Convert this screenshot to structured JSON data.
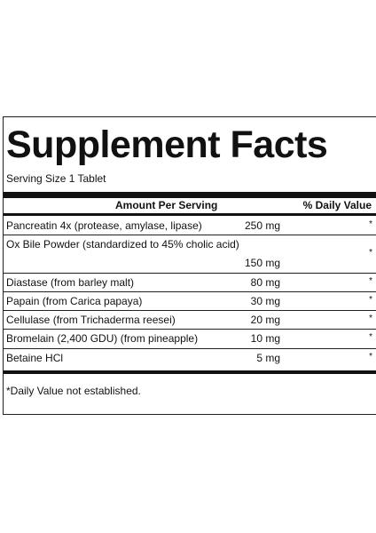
{
  "label": {
    "title": "Supplement Facts",
    "serving_size": "Serving Size 1 Tablet",
    "header_amount": "Amount Per Serving",
    "header_dv": "% Daily Value",
    "rows": [
      {
        "name": "Pancreatin 4x (protease, amylase, lipase)",
        "amount": "250 mg",
        "dv": "*"
      },
      {
        "name": "Ox Bile Powder (standardized to 45% cholic acid)",
        "amount": "150 mg",
        "dv": "*"
      },
      {
        "name": "Diastase (from barley malt)",
        "amount": "80 mg",
        "dv": "*"
      },
      {
        "name": "Papain (from Carica papaya)",
        "amount": "30 mg",
        "dv": "*"
      },
      {
        "name": "Cellulase (from Trichaderma reesei)",
        "amount": "20 mg",
        "dv": "*"
      },
      {
        "name": "Bromelain (2,400 GDU) (from pineapple)",
        "amount": "10 mg",
        "dv": "*"
      },
      {
        "name": "Betaine HCl",
        "amount": "5 mg",
        "dv": "*"
      }
    ],
    "footnote": "*Daily Value not established."
  }
}
